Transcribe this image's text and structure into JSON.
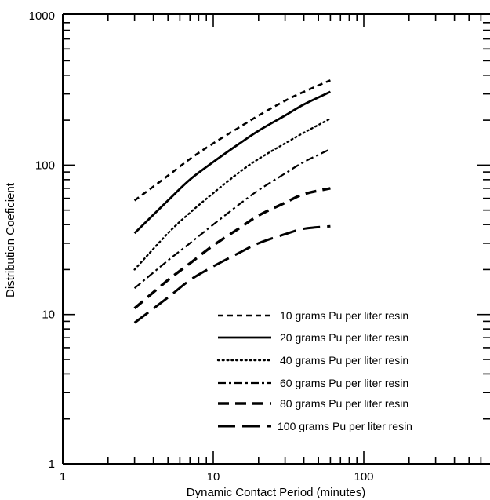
{
  "chart_data": {
    "type": "line",
    "xlabel": "Dynamic Contact Period (minutes)",
    "ylabel": "Distribution Coeficient",
    "x_scale": "log",
    "y_scale": "log",
    "xlim": [
      1,
      600
    ],
    "ylim": [
      1,
      1000
    ],
    "x_tick_labels": [
      "1",
      "10",
      "100"
    ],
    "y_tick_labels": [
      "1",
      "10",
      "100",
      "1000"
    ],
    "legend_position": "bottom-right",
    "grid": false,
    "series": [
      {
        "name": "10 grams Pu per liter resin",
        "style": "short-dash",
        "x": [
          3,
          5,
          7,
          10,
          15,
          20,
          30,
          40,
          60
        ],
        "y": [
          58,
          85,
          110,
          140,
          180,
          215,
          270,
          310,
          370
        ]
      },
      {
        "name": "20 grams Pu per liter resin",
        "style": "solid",
        "x": [
          3,
          5,
          7,
          10,
          15,
          20,
          30,
          40,
          60
        ],
        "y": [
          35,
          58,
          80,
          105,
          140,
          170,
          215,
          255,
          310
        ]
      },
      {
        "name": "40 grams Pu per liter resin",
        "style": "dotted",
        "x": [
          3,
          5,
          7,
          10,
          15,
          20,
          30,
          40,
          60
        ],
        "y": [
          20,
          35,
          48,
          65,
          90,
          110,
          140,
          165,
          205
        ]
      },
      {
        "name": "60 grams Pu per liter resin",
        "style": "dash-dot",
        "x": [
          3,
          5,
          7,
          10,
          15,
          20,
          30,
          40,
          60
        ],
        "y": [
          15,
          23,
          30,
          40,
          55,
          68,
          88,
          105,
          128
        ]
      },
      {
        "name": "80 grams Pu per liter resin",
        "style": "medium-dash",
        "x": [
          3,
          5,
          7,
          10,
          15,
          20,
          30,
          40,
          60
        ],
        "y": [
          11,
          17,
          22,
          29,
          38,
          46,
          56,
          64,
          70
        ]
      },
      {
        "name": "100 grams Pu per liter resin",
        "style": "long-dash",
        "x": [
          3,
          5,
          7,
          10,
          15,
          20,
          30,
          40,
          60
        ],
        "y": [
          8.8,
          13,
          17,
          21,
          26,
          30,
          34.5,
          37.5,
          39
        ]
      }
    ]
  }
}
